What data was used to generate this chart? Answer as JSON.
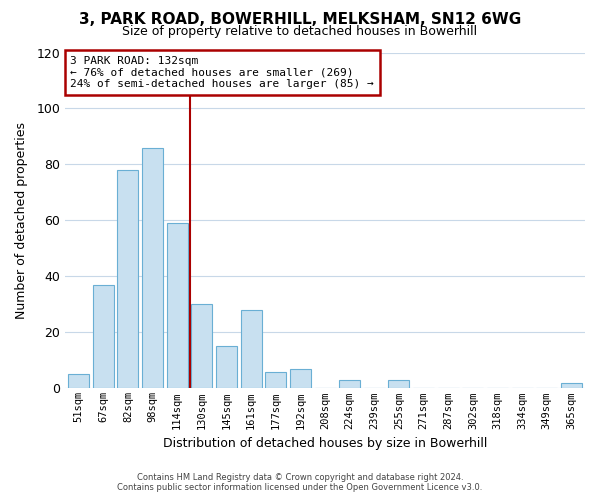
{
  "title": "3, PARK ROAD, BOWERHILL, MELKSHAM, SN12 6WG",
  "subtitle": "Size of property relative to detached houses in Bowerhill",
  "xlabel": "Distribution of detached houses by size in Bowerhill",
  "ylabel": "Number of detached properties",
  "categories": [
    "51sqm",
    "67sqm",
    "82sqm",
    "98sqm",
    "114sqm",
    "130sqm",
    "145sqm",
    "161sqm",
    "177sqm",
    "192sqm",
    "208sqm",
    "224sqm",
    "239sqm",
    "255sqm",
    "271sqm",
    "287sqm",
    "302sqm",
    "318sqm",
    "334sqm",
    "349sqm",
    "365sqm"
  ],
  "values": [
    5,
    37,
    78,
    86,
    59,
    30,
    15,
    28,
    6,
    7,
    0,
    3,
    0,
    3,
    0,
    0,
    0,
    0,
    0,
    0,
    2
  ],
  "bar_color": "#c8e0f0",
  "bar_edge_color": "#6aafd4",
  "annotation_title": "3 PARK ROAD: 132sqm",
  "annotation_line1": "← 76% of detached houses are smaller (269)",
  "annotation_line2": "24% of semi-detached houses are larger (85) →",
  "annotation_box_color": "#ffffff",
  "annotation_box_edge": "#aa0000",
  "vline_color": "#aa0000",
  "vline_index": 4.5,
  "ylim": [
    0,
    120
  ],
  "yticks": [
    0,
    20,
    40,
    60,
    80,
    100,
    120
  ],
  "footer_line1": "Contains HM Land Registry data © Crown copyright and database right 2024.",
  "footer_line2": "Contains public sector information licensed under the Open Government Licence v3.0.",
  "bg_color": "#ffffff",
  "grid_color": "#c8d8e8"
}
